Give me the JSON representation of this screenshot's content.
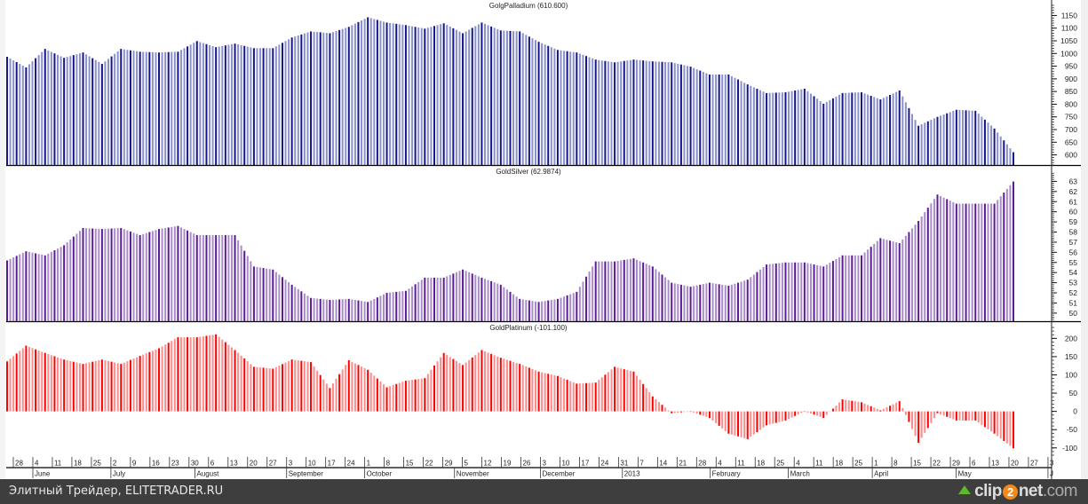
{
  "chart_data": [
    {
      "type": "bar",
      "title": "GolgPalladium (610.600)",
      "sampling": "weekly",
      "ylim": [
        560,
        1190
      ],
      "yticks": [
        600,
        650,
        700,
        750,
        800,
        850,
        900,
        950,
        1000,
        1050,
        1100,
        1150
      ],
      "values": [
        987,
        945,
        1018,
        983,
        1004,
        959,
        1018,
        1007,
        1004,
        1007,
        1049,
        1025,
        1039,
        1021,
        1021,
        1063,
        1087,
        1080,
        1105,
        1143,
        1122,
        1112,
        1098,
        1119,
        1080,
        1122,
        1091,
        1087,
        1046,
        1014,
        1004,
        976,
        965,
        976,
        969,
        965,
        948,
        917,
        917,
        878,
        844,
        847,
        861,
        802,
        844,
        847,
        819,
        854,
        715,
        750,
        778,
        774,
        704,
        610.6
      ],
      "colors": {
        "dark": "#14148c",
        "light": "#8a90cc"
      }
    },
    {
      "type": "bar",
      "title": "GoldSilver (62.9874)",
      "sampling": "weekly",
      "ylim": [
        49.2,
        64
      ],
      "yticks": [
        50,
        51,
        52,
        53,
        54,
        55,
        56,
        57,
        58,
        59,
        60,
        61,
        62,
        63
      ],
      "values": [
        55.2,
        56.1,
        55.7,
        56.7,
        58.4,
        58.3,
        58.4,
        57.7,
        58.3,
        58.6,
        57.7,
        57.7,
        57.7,
        54.6,
        54.3,
        52.8,
        51.5,
        51.3,
        51.4,
        51.1,
        52.0,
        52.2,
        53.5,
        53.5,
        54.3,
        53.5,
        52.8,
        51.4,
        51.1,
        51.4,
        52.1,
        55.1,
        55.1,
        55.4,
        54.6,
        53.0,
        52.6,
        53.0,
        52.7,
        53.3,
        54.8,
        55.0,
        55.0,
        54.6,
        55.7,
        55.7,
        57.4,
        56.9,
        59.1,
        61.7,
        60.8,
        60.8,
        60.8,
        62.9874
      ],
      "colors": {
        "dark": "#5a1a96",
        "light": "#a98bca"
      }
    },
    {
      "type": "bar",
      "title": "GoldPlatinum (-101.100)",
      "sampling": "weekly",
      "ylim": [
        -120,
        230
      ],
      "yticks": [
        -100,
        -50,
        0,
        50,
        100,
        150,
        200
      ],
      "values": [
        137,
        180,
        160,
        142,
        130,
        142,
        130,
        152,
        173,
        203,
        203,
        211,
        168,
        122,
        117,
        142,
        135,
        64,
        140,
        114,
        66,
        84,
        91,
        160,
        127,
        168,
        147,
        130,
        109,
        97,
        76,
        79,
        122,
        109,
        41,
        -5,
        0,
        -18,
        -61,
        -76,
        -38,
        -25,
        0,
        -18,
        33,
        25,
        3,
        28,
        -86,
        -5,
        -25,
        -25,
        -61,
        -101.1
      ],
      "colors": {
        "dark": "#ff0000",
        "light": "#ff8c8c"
      }
    }
  ],
  "x_axis": {
    "week_labels": [
      "28",
      "4",
      "11",
      "18",
      "25",
      "2",
      "9",
      "16",
      "23",
      "30",
      "6",
      "13",
      "20",
      "27",
      "3",
      "10",
      "17",
      "24",
      "1",
      "8",
      "15",
      "22",
      "29",
      "5",
      "12",
      "19",
      "26",
      "3",
      "10",
      "17",
      "24",
      "31",
      "7",
      "14",
      "21",
      "28",
      "4",
      "11",
      "18",
      "25",
      "4",
      "11",
      "18",
      "25",
      "1",
      "8",
      "15",
      "22",
      "29",
      "6",
      "13",
      "20",
      "27",
      "3"
    ],
    "months": [
      {
        "label": "June",
        "week": 1
      },
      {
        "label": "July",
        "week": 5
      },
      {
        "label": "August",
        "week": 9.3
      },
      {
        "label": "September",
        "week": 14
      },
      {
        "label": "October",
        "week": 18
      },
      {
        "label": "November",
        "week": 22.6
      },
      {
        "label": "December",
        "week": 27
      },
      {
        "label": "2013",
        "week": 31.2
      },
      {
        "label": "February",
        "week": 35.7
      },
      {
        "label": "March",
        "week": 39.7
      },
      {
        "label": "April",
        "week": 44
      },
      {
        "label": "May",
        "week": 48.3
      },
      {
        "label": "J",
        "week": 53
      }
    ]
  },
  "footer": {
    "caption": "Элитный Трейдер, ELITETRADER.RU",
    "logo_pre": "clip",
    "logo_two": "2",
    "logo_post": "net",
    "logo_domain": ".com"
  }
}
